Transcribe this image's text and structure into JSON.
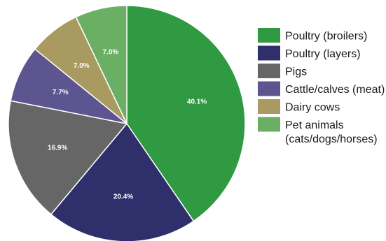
{
  "chart_data": {
    "type": "pie",
    "title": "",
    "legend_position": "right",
    "slices": [
      {
        "name": "Poultry (broilers)",
        "value": 40.1,
        "label": "40.1%",
        "color": "#2f9a41",
        "legend_lines": [
          "Poultry (broilers)"
        ]
      },
      {
        "name": "Poultry (layers)",
        "value": 20.4,
        "label": "20.4%",
        "color": "#2e2f6b",
        "legend_lines": [
          "Poultry (layers)"
        ]
      },
      {
        "name": "Pigs",
        "value": 16.9,
        "label": "16.9%",
        "color": "#666666",
        "legend_lines": [
          "Pigs"
        ]
      },
      {
        "name": "Cattle/calves (meat)",
        "value": 7.7,
        "label": "7.7%",
        "color": "#5d5590",
        "legend_lines": [
          "Cattle/calves (meat)"
        ]
      },
      {
        "name": "Dairy cows",
        "value": 7.0,
        "label": "7.0%",
        "color": "#a99a61",
        "legend_lines": [
          "Dairy cows"
        ]
      },
      {
        "name": "Pet animals (cats/dogs/horses)",
        "value": 7.0,
        "label": "7.0%",
        "color": "#6aaf63",
        "legend_lines": [
          "Pet animals",
          "(cats/dogs/horses)"
        ]
      }
    ]
  }
}
